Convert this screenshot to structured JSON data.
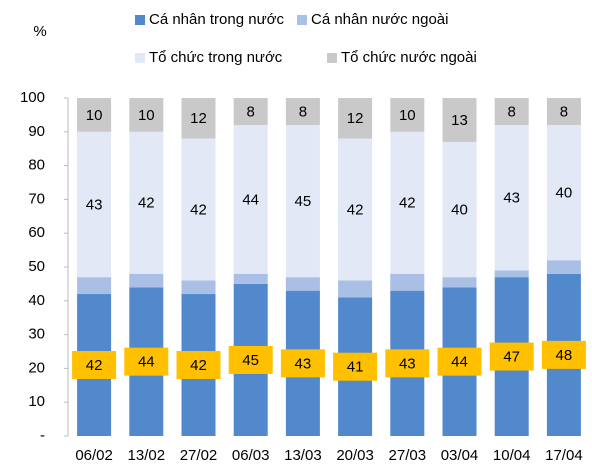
{
  "chart_data": {
    "type": "stacked-bar",
    "y_label": "%",
    "categories": [
      "06/02",
      "13/02",
      "27/02",
      "06/03",
      "13/03",
      "20/03",
      "27/03",
      "03/04",
      "10/04",
      "17/04"
    ],
    "series": [
      {
        "name": "Cá nhân trong nước",
        "color": "#5289cc",
        "values": [
          42,
          44,
          42,
          45,
          43,
          41,
          43,
          44,
          47,
          48
        ],
        "label_box": "#ffc000"
      },
      {
        "name": "Cá nhân nước ngoài",
        "color": "#a9bfe6",
        "values": [
          5,
          4,
          4,
          3,
          4,
          5,
          5,
          3,
          2,
          4
        ]
      },
      {
        "name": "Tổ chức trong nước",
        "color": "#e2e8f6",
        "values": [
          43,
          42,
          42,
          44,
          45,
          42,
          42,
          40,
          43,
          40
        ]
      },
      {
        "name": "Tổ chức nước ngoài",
        "color": "#c9c9c9",
        "values": [
          10,
          10,
          12,
          8,
          8,
          12,
          10,
          13,
          8,
          8
        ]
      }
    ],
    "labeled_series": [
      0,
      2,
      3
    ],
    "ylim": [
      0,
      100
    ],
    "yticks": [
      {
        "value": 0,
        "label": "-"
      },
      10,
      20,
      30,
      40,
      50,
      60,
      70,
      80,
      90,
      100
    ],
    "grid": false
  }
}
